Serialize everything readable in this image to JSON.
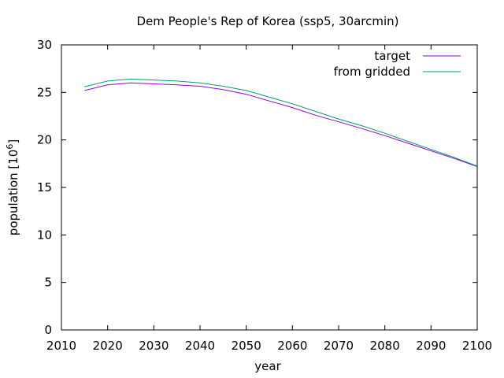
{
  "chart_data": {
    "type": "line",
    "title": "Dem People's Rep of Korea (ssp5, 30arcmin)",
    "xlabel": "year",
    "ylabel_prefix": "population [10",
    "ylabel_exp": "6",
    "ylabel_suffix": "]",
    "xlim": [
      2010,
      2100
    ],
    "ylim": [
      0,
      30
    ],
    "xticks": [
      2010,
      2020,
      2030,
      2040,
      2050,
      2060,
      2070,
      2080,
      2090,
      2100
    ],
    "yticks": [
      0,
      5,
      10,
      15,
      20,
      25,
      30
    ],
    "legend_position": "top-right",
    "grid": false,
    "series": [
      {
        "name": "target",
        "color": "#9400d3",
        "x": [
          2015,
          2020,
          2025,
          2030,
          2035,
          2040,
          2045,
          2050,
          2055,
          2060,
          2065,
          2070,
          2075,
          2080,
          2085,
          2090,
          2095,
          2100
        ],
        "y": [
          25.2,
          25.8,
          26.0,
          25.9,
          25.8,
          25.65,
          25.3,
          24.8,
          24.1,
          23.4,
          22.6,
          21.9,
          21.2,
          20.45,
          19.65,
          18.85,
          18.05,
          17.2
        ]
      },
      {
        "name": "from gridded",
        "color": "#009e73",
        "x": [
          2015,
          2020,
          2025,
          2030,
          2035,
          2040,
          2045,
          2050,
          2055,
          2060,
          2065,
          2070,
          2075,
          2080,
          2085,
          2090,
          2095,
          2100
        ],
        "y": [
          25.6,
          26.2,
          26.4,
          26.3,
          26.2,
          26.0,
          25.65,
          25.2,
          24.5,
          23.8,
          23.0,
          22.2,
          21.5,
          20.7,
          19.85,
          19.0,
          18.15,
          17.25
        ]
      }
    ]
  }
}
